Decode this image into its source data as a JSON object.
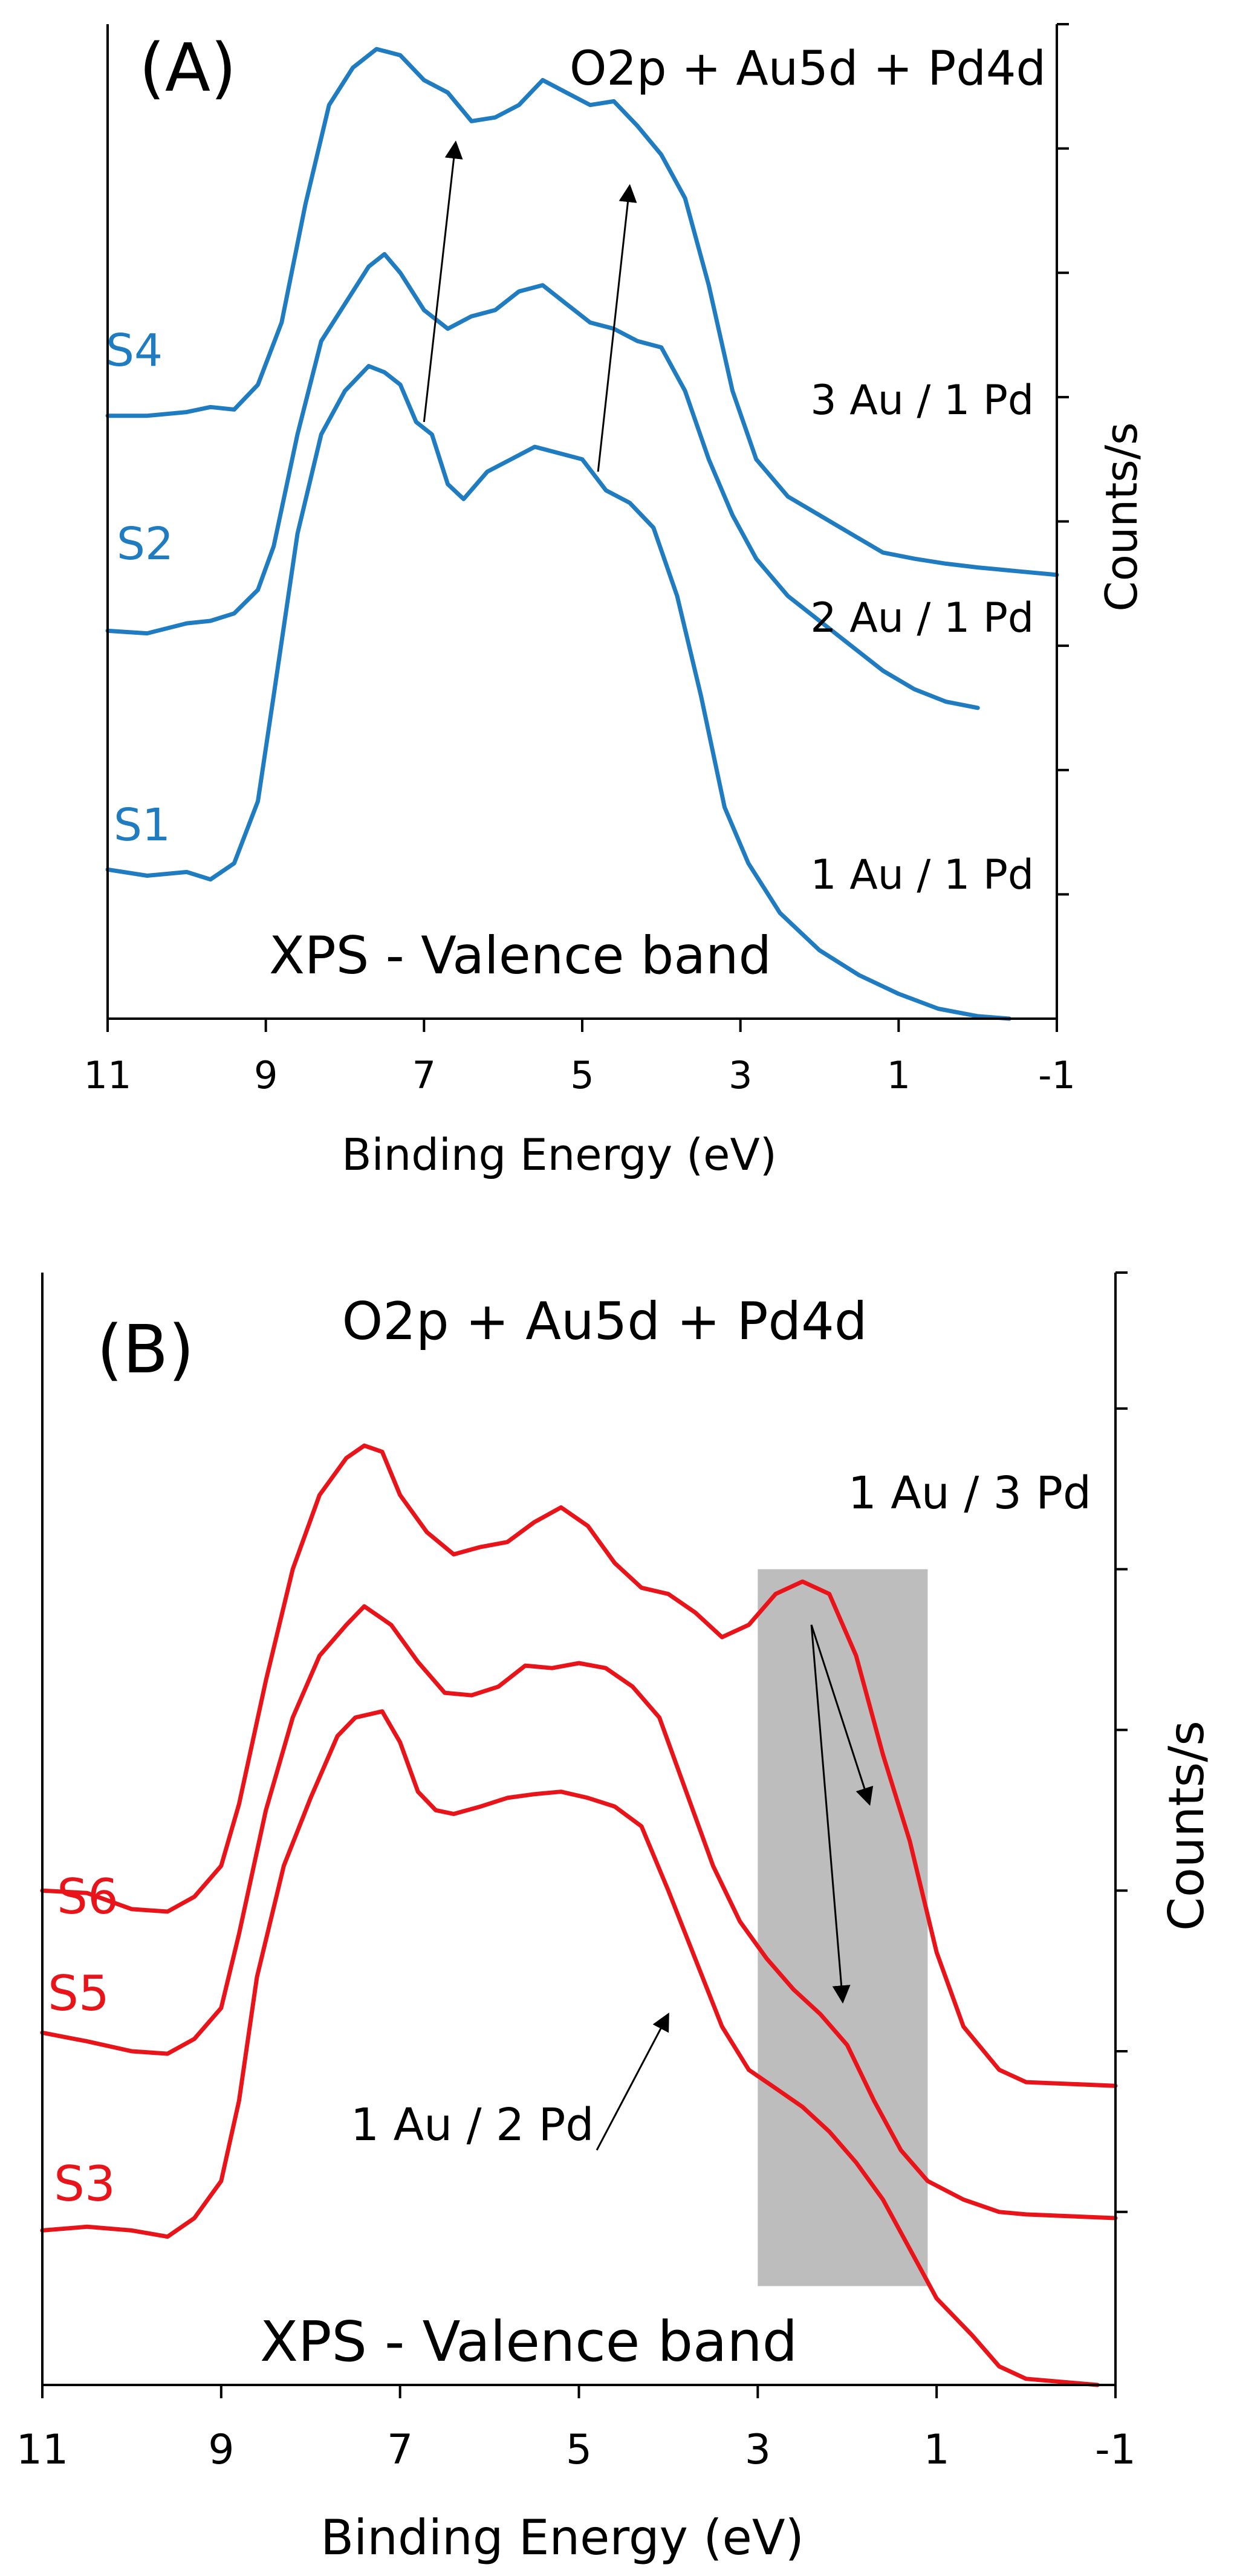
{
  "chart_data": [
    {
      "panel": "A",
      "type": "line",
      "panel_label": "(A)",
      "header": "O2p + Au5d + Pd4d",
      "annotation": "XPS - Valence band",
      "xlabel": "Binding Energy (eV)",
      "ylabel": "Counts/s",
      "xlim": [
        11,
        -1
      ],
      "xticks": [
        "11",
        "9",
        "7",
        "5",
        "3",
        "1",
        "-1"
      ],
      "x_tick_values": [
        11,
        9,
        7,
        5,
        3,
        1,
        -1
      ],
      "ylim": [
        0,
        800
      ],
      "y_tick_values": [
        100,
        200,
        300,
        400,
        500,
        600,
        700,
        800
      ],
      "y_tick_labels_shown": false,
      "series_color": "#1f7cc1",
      "series": [
        {
          "name": "S1",
          "ratio_label": "1 Au / 1 Pd",
          "points": [
            [
              11,
              120
            ],
            [
              10.5,
              115
            ],
            [
              10,
              118
            ],
            [
              9.7,
              112
            ],
            [
              9.4,
              125
            ],
            [
              9.1,
              175
            ],
            [
              8.9,
              260
            ],
            [
              8.6,
              390
            ],
            [
              8.3,
              470
            ],
            [
              8.0,
              505
            ],
            [
              7.7,
              525
            ],
            [
              7.5,
              520
            ],
            [
              7.3,
              510
            ],
            [
              7.1,
              480
            ],
            [
              6.9,
              470
            ],
            [
              6.7,
              430
            ],
            [
              6.5,
              418
            ],
            [
              6.2,
              440
            ],
            [
              5.9,
              450
            ],
            [
              5.6,
              460
            ],
            [
              5.3,
              455
            ],
            [
              5.0,
              450
            ],
            [
              4.7,
              425
            ],
            [
              4.4,
              415
            ],
            [
              4.1,
              395
            ],
            [
              3.8,
              340
            ],
            [
              3.5,
              260
            ],
            [
              3.2,
              170
            ],
            [
              2.9,
              125
            ],
            [
              2.5,
              85
            ],
            [
              2,
              55
            ],
            [
              1.5,
              35
            ],
            [
              1,
              20
            ],
            [
              0.5,
              8
            ],
            [
              0,
              2
            ],
            [
              -0.4,
              0
            ]
          ]
        },
        {
          "name": "S2",
          "ratio_label": "2 Au / 1 Pd",
          "points": [
            [
              11,
              312
            ],
            [
              10.5,
              310
            ],
            [
              10,
              318
            ],
            [
              9.7,
              320
            ],
            [
              9.4,
              326
            ],
            [
              9.1,
              345
            ],
            [
              8.9,
              380
            ],
            [
              8.6,
              470
            ],
            [
              8.3,
              545
            ],
            [
              8.0,
              575
            ],
            [
              7.7,
              605
            ],
            [
              7.5,
              615
            ],
            [
              7.3,
              600
            ],
            [
              7.0,
              570
            ],
            [
              6.7,
              555
            ],
            [
              6.4,
              565
            ],
            [
              6.1,
              570
            ],
            [
              5.8,
              585
            ],
            [
              5.5,
              590
            ],
            [
              5.2,
              575
            ],
            [
              4.9,
              560
            ],
            [
              4.6,
              555
            ],
            [
              4.3,
              545
            ],
            [
              4.0,
              540
            ],
            [
              3.7,
              505
            ],
            [
              3.4,
              450
            ],
            [
              3.1,
              405
            ],
            [
              2.8,
              370
            ],
            [
              2.4,
              340
            ],
            [
              2,
              320
            ],
            [
              1.6,
              300
            ],
            [
              1.2,
              280
            ],
            [
              0.8,
              265
            ],
            [
              0.4,
              255
            ],
            [
              0,
              250
            ]
          ]
        },
        {
          "name": "S4",
          "ratio_label": "3 Au / 1 Pd",
          "points": [
            [
              11,
              485
            ],
            [
              10.5,
              485
            ],
            [
              10,
              488
            ],
            [
              9.7,
              492
            ],
            [
              9.4,
              490
            ],
            [
              9.1,
              510
            ],
            [
              8.8,
              560
            ],
            [
              8.5,
              655
            ],
            [
              8.2,
              735
            ],
            [
              7.9,
              765
            ],
            [
              7.6,
              780
            ],
            [
              7.3,
              775
            ],
            [
              7.0,
              755
            ],
            [
              6.7,
              745
            ],
            [
              6.4,
              722
            ],
            [
              6.1,
              725
            ],
            [
              5.8,
              735
            ],
            [
              5.5,
              755
            ],
            [
              5.2,
              745
            ],
            [
              4.9,
              735
            ],
            [
              4.6,
              738
            ],
            [
              4.3,
              718
            ],
            [
              4.0,
              695
            ],
            [
              3.7,
              660
            ],
            [
              3.4,
              590
            ],
            [
              3.1,
              505
            ],
            [
              2.8,
              450
            ],
            [
              2.4,
              420
            ],
            [
              2.0,
              405
            ],
            [
              1.6,
              390
            ],
            [
              1.2,
              375
            ],
            [
              0.8,
              370
            ],
            [
              0.4,
              366
            ],
            [
              0,
              363
            ],
            [
              -0.5,
              360
            ],
            [
              -1,
              357
            ]
          ]
        }
      ],
      "arrows": [
        {
          "from": [
            7.0,
            480
          ],
          "to": [
            6.6,
            705
          ]
        },
        {
          "from": [
            4.8,
            440
          ],
          "to": [
            4.4,
            670
          ]
        }
      ]
    },
    {
      "panel": "B",
      "type": "line",
      "panel_label": "(B)",
      "header": "O2p + Au5d + Pd4d",
      "annotation": "XPS - Valence band",
      "xlabel": "Binding Energy (eV)",
      "ylabel": "Counts/s",
      "xlim": [
        11,
        -1
      ],
      "xticks": [
        "11",
        "9",
        "7",
        "5",
        "3",
        "1",
        "-1"
      ],
      "x_tick_values": [
        11,
        9,
        7,
        5,
        3,
        1,
        -1
      ],
      "ylim": [
        0,
        900
      ],
      "y_tick_values": [
        140,
        270,
        400,
        530,
        660,
        790,
        900
      ],
      "y_tick_labels_shown": false,
      "series_color": "#e8141a",
      "highlight_region": {
        "x_from": 3.0,
        "x_to": 1.1,
        "y_from": 80,
        "y_to": 660,
        "color": "#bdbdbd"
      },
      "series": [
        {
          "name": "S3",
          "points": [
            [
              11,
              125
            ],
            [
              10.5,
              128
            ],
            [
              10,
              125
            ],
            [
              9.6,
              120
            ],
            [
              9.3,
              135
            ],
            [
              9.0,
              165
            ],
            [
              8.8,
              230
            ],
            [
              8.6,
              330
            ],
            [
              8.3,
              420
            ],
            [
              8.0,
              475
            ],
            [
              7.7,
              525
            ],
            [
              7.5,
              540
            ],
            [
              7.2,
              545
            ],
            [
              7.0,
              520
            ],
            [
              6.8,
              480
            ],
            [
              6.6,
              465
            ],
            [
              6.4,
              462
            ],
            [
              6.1,
              468
            ],
            [
              5.8,
              475
            ],
            [
              5.5,
              478
            ],
            [
              5.2,
              480
            ],
            [
              4.9,
              475
            ],
            [
              4.6,
              468
            ],
            [
              4.3,
              452
            ],
            [
              4.0,
              400
            ],
            [
              3.7,
              345
            ],
            [
              3.4,
              290
            ],
            [
              3.1,
              255
            ],
            [
              2.8,
              240
            ],
            [
              2.5,
              225
            ],
            [
              2.2,
              205
            ],
            [
              1.9,
              180
            ],
            [
              1.6,
              150
            ],
            [
              1.3,
              110
            ],
            [
              1,
              70
            ],
            [
              0.6,
              40
            ],
            [
              0.3,
              15
            ],
            [
              0,
              5
            ],
            [
              -0.8,
              0
            ]
          ]
        },
        {
          "name": "S5",
          "points": [
            [
              11,
              285
            ],
            [
              10.5,
              278
            ],
            [
              10,
              270
            ],
            [
              9.6,
              268
            ],
            [
              9.3,
              280
            ],
            [
              9.0,
              305
            ],
            [
              8.8,
              365
            ],
            [
              8.5,
              465
            ],
            [
              8.2,
              540
            ],
            [
              7.9,
              590
            ],
            [
              7.6,
              615
            ],
            [
              7.4,
              630
            ],
            [
              7.1,
              615
            ],
            [
              6.8,
              585
            ],
            [
              6.5,
              560
            ],
            [
              6.2,
              558
            ],
            [
              5.9,
              565
            ],
            [
              5.6,
              582
            ],
            [
              5.3,
              580
            ],
            [
              5.0,
              584
            ],
            [
              4.7,
              580
            ],
            [
              4.4,
              565
            ],
            [
              4.1,
              540
            ],
            [
              3.8,
              480
            ],
            [
              3.5,
              420
            ],
            [
              3.2,
              375
            ],
            [
              2.9,
              345
            ],
            [
              2.6,
              320
            ],
            [
              2.3,
              300
            ],
            [
              2.0,
              275
            ],
            [
              1.7,
              230
            ],
            [
              1.4,
              190
            ],
            [
              1.1,
              165
            ],
            [
              0.7,
              150
            ],
            [
              0.3,
              140
            ],
            [
              0,
              138
            ],
            [
              -1,
              135
            ]
          ]
        },
        {
          "name": "S6",
          "points": [
            [
              11,
              400
            ],
            [
              10.5,
              398
            ],
            [
              10,
              385
            ],
            [
              9.6,
              383
            ],
            [
              9.3,
              395
            ],
            [
              9.0,
              420
            ],
            [
              8.8,
              470
            ],
            [
              8.5,
              570
            ],
            [
              8.2,
              660
            ],
            [
              7.9,
              720
            ],
            [
              7.6,
              750
            ],
            [
              7.4,
              760
            ],
            [
              7.2,
              755
            ],
            [
              7.0,
              720
            ],
            [
              6.7,
              690
            ],
            [
              6.4,
              672
            ],
            [
              6.1,
              678
            ],
            [
              5.8,
              682
            ],
            [
              5.5,
              698
            ],
            [
              5.2,
              710
            ],
            [
              4.9,
              695
            ],
            [
              4.6,
              665
            ],
            [
              4.3,
              645
            ],
            [
              4.0,
              640
            ],
            [
              3.7,
              625
            ],
            [
              3.4,
              605
            ],
            [
              3.1,
              615
            ],
            [
              2.8,
              640
            ],
            [
              2.5,
              650
            ],
            [
              2.2,
              640
            ],
            [
              1.9,
              590
            ],
            [
              1.6,
              510
            ],
            [
              1.3,
              440
            ],
            [
              1.0,
              350
            ],
            [
              0.7,
              290
            ],
            [
              0.3,
              255
            ],
            [
              0,
              245
            ],
            [
              -1,
              242
            ]
          ]
        }
      ],
      "labels": {
        "ratio_top": "1 Au / 3 Pd",
        "ratio_bottom": "1 Au / 2 Pd"
      },
      "arrows": [
        {
          "from": [
            2.4,
            615
          ],
          "to": [
            1.75,
            470
          ]
        },
        {
          "from": [
            2.4,
            615
          ],
          "to": [
            2.05,
            310
          ]
        },
        {
          "from": [
            4.8,
            190
          ],
          "to": [
            4.0,
            300
          ]
        }
      ]
    }
  ]
}
